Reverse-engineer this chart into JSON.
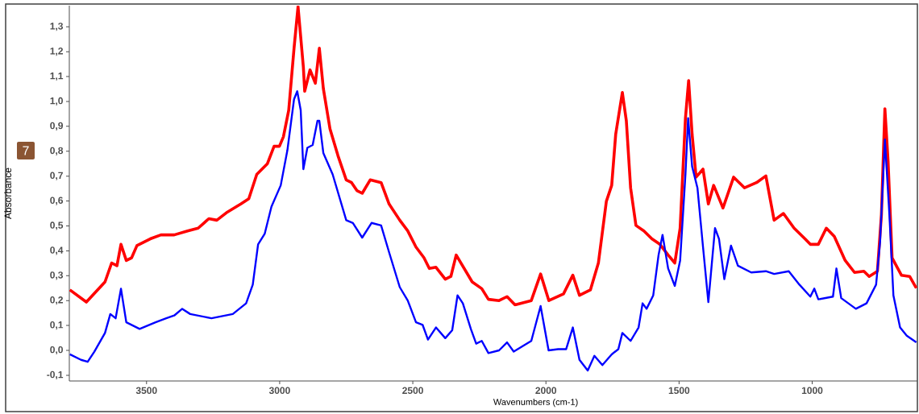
{
  "chart_data": {
    "type": "line",
    "xlabel": "Wavenumbers (cm-1)",
    "ylabel": "Absorbance",
    "annotations": [
      "7"
    ],
    "xlim": [
      3790,
      605
    ],
    "ylim": [
      -0.123,
      1.385
    ],
    "xticks": [
      3500,
      3000,
      2500,
      2000,
      1500,
      1000
    ],
    "yticks": [
      {
        "value": -0.1,
        "label": "-0,1"
      },
      {
        "value": 0.0,
        "label": "0,0"
      },
      {
        "value": 0.1,
        "label": "0,1"
      },
      {
        "value": 0.2,
        "label": "0,2"
      },
      {
        "value": 0.3,
        "label": "0,3"
      },
      {
        "value": 0.4,
        "label": "0,4"
      },
      {
        "value": 0.5,
        "label": "0,5"
      },
      {
        "value": 0.6,
        "label": "0,6"
      },
      {
        "value": 0.7,
        "label": "0,7"
      },
      {
        "value": 0.8,
        "label": "0,8"
      },
      {
        "value": 0.9,
        "label": "0,9"
      },
      {
        "value": 1.0,
        "label": "1,0"
      },
      {
        "value": 1.1,
        "label": "1,1"
      },
      {
        "value": 1.2,
        "label": "1,2"
      },
      {
        "value": 1.3,
        "label": "1,3"
      }
    ],
    "grid": false,
    "legend": false,
    "marker": "none",
    "line_style": "solid",
    "series": [
      {
        "color": "#ff0000",
        "x": [
          3788,
          3726,
          3656,
          3631,
          3611,
          3596,
          3576,
          3556,
          3536,
          3486,
          3446,
          3396,
          3346,
          3306,
          3266,
          3236,
          3196,
          3146,
          3116,
          3086,
          3046,
          3021,
          3001,
          2986,
          2966,
          2946,
          2931,
          2911,
          2906,
          2886,
          2866,
          2851,
          2836,
          2811,
          2781,
          2750,
          2730,
          2710,
          2690,
          2660,
          2619,
          2589,
          2549,
          2519,
          2488,
          2458,
          2438,
          2413,
          2378,
          2357,
          2337,
          2307,
          2277,
          2241,
          2216,
          2176,
          2146,
          2116,
          2055,
          2020,
          1989,
          1934,
          1899,
          1874,
          1833,
          1803,
          1773,
          1753,
          1738,
          1713,
          1698,
          1682,
          1662,
          1632,
          1602,
          1572,
          1541,
          1516,
          1496,
          1476,
          1464,
          1451,
          1436,
          1410,
          1390,
          1370,
          1335,
          1295,
          1254,
          1209,
          1174,
          1143,
          1108,
          1068,
          1027,
          1007,
          977,
          947,
          917,
          876,
          841,
          806,
          786,
          755,
          740,
          727,
          715,
          700,
          665,
          634,
          609
        ],
        "values": [
          0.243,
          0.194,
          0.275,
          0.351,
          0.34,
          0.426,
          0.361,
          0.372,
          0.421,
          0.448,
          0.464,
          0.464,
          0.48,
          0.491,
          0.529,
          0.523,
          0.556,
          0.588,
          0.609,
          0.707,
          0.75,
          0.82,
          0.82,
          0.858,
          0.965,
          1.214,
          1.381,
          1.138,
          1.041,
          1.127,
          1.073,
          1.214,
          1.052,
          0.89,
          0.782,
          0.685,
          0.674,
          0.642,
          0.631,
          0.685,
          0.674,
          0.588,
          0.523,
          0.48,
          0.415,
          0.372,
          0.329,
          0.334,
          0.286,
          0.297,
          0.383,
          0.329,
          0.275,
          0.248,
          0.205,
          0.2,
          0.216,
          0.183,
          0.2,
          0.307,
          0.2,
          0.227,
          0.302,
          0.221,
          0.243,
          0.351,
          0.599,
          0.663,
          0.868,
          1.036,
          0.922,
          0.653,
          0.502,
          0.48,
          0.448,
          0.426,
          0.383,
          0.351,
          0.491,
          0.933,
          1.084,
          0.868,
          0.696,
          0.728,
          0.588,
          0.663,
          0.572,
          0.696,
          0.653,
          0.674,
          0.701,
          0.523,
          0.55,
          0.491,
          0.448,
          0.426,
          0.426,
          0.491,
          0.458,
          0.361,
          0.313,
          0.318,
          0.297,
          0.318,
          0.545,
          0.971,
          0.76,
          0.372,
          0.302,
          0.297,
          0.25
        ]
      },
      {
        "color": "#0000ff",
        "x": [
          3788,
          3746,
          3721,
          3696,
          3656,
          3636,
          3616,
          3596,
          3576,
          3526,
          3466,
          3426,
          3396,
          3366,
          3336,
          3256,
          3176,
          3126,
          3101,
          3081,
          3056,
          3031,
          2996,
          2971,
          2946,
          2934,
          2921,
          2911,
          2896,
          2876,
          2858,
          2851,
          2836,
          2801,
          2750,
          2725,
          2690,
          2655,
          2619,
          2589,
          2549,
          2519,
          2488,
          2463,
          2443,
          2413,
          2378,
          2352,
          2332,
          2312,
          2282,
          2262,
          2241,
          2216,
          2176,
          2146,
          2121,
          2055,
          2020,
          1990,
          1954,
          1924,
          1899,
          1874,
          1843,
          1818,
          1788,
          1753,
          1728,
          1713,
          1682,
          1652,
          1637,
          1622,
          1597,
          1577,
          1562,
          1541,
          1516,
          1496,
          1476,
          1466,
          1451,
          1431,
          1410,
          1390,
          1365,
          1350,
          1330,
          1305,
          1279,
          1229,
          1174,
          1143,
          1088,
          1048,
          1007,
          992,
          977,
          922,
          909,
          891,
          836,
          796,
          760,
          745,
          727,
          710,
          695,
          670,
          645,
          609
        ],
        "values": [
          -0.016,
          -0.038,
          -0.046,
          -0.005,
          0.07,
          0.146,
          0.129,
          0.248,
          0.113,
          0.086,
          0.113,
          0.129,
          0.14,
          0.167,
          0.146,
          0.129,
          0.146,
          0.189,
          0.264,
          0.426,
          0.469,
          0.577,
          0.663,
          0.804,
          1.009,
          1.041,
          0.965,
          0.728,
          0.814,
          0.825,
          0.922,
          0.922,
          0.793,
          0.707,
          0.523,
          0.512,
          0.453,
          0.512,
          0.502,
          0.394,
          0.254,
          0.2,
          0.113,
          0.102,
          0.043,
          0.092,
          0.049,
          0.081,
          0.221,
          0.189,
          0.086,
          0.027,
          0.038,
          -0.011,
          0.0,
          0.032,
          -0.005,
          0.038,
          0.178,
          0.0,
          0.005,
          0.005,
          0.092,
          -0.038,
          -0.081,
          -0.022,
          -0.059,
          -0.016,
          0.005,
          0.07,
          0.038,
          0.092,
          0.189,
          0.167,
          0.221,
          0.383,
          0.464,
          0.329,
          0.259,
          0.361,
          0.707,
          0.933,
          0.739,
          0.653,
          0.415,
          0.194,
          0.491,
          0.448,
          0.286,
          0.421,
          0.34,
          0.313,
          0.318,
          0.307,
          0.318,
          0.264,
          0.216,
          0.248,
          0.205,
          0.216,
          0.329,
          0.21,
          0.167,
          0.189,
          0.264,
          0.437,
          0.847,
          0.545,
          0.221,
          0.092,
          0.059,
          0.032
        ]
      }
    ]
  }
}
